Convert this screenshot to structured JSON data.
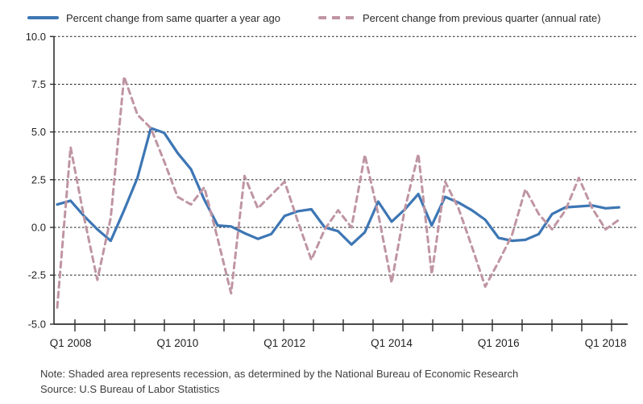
{
  "legend": {
    "yoy_label": "Percent change from same quarter a year ago",
    "qoq_label": "Percent change from previous quarter (annual rate)"
  },
  "notes": {
    "note": "Note: Shaded area represents recession, as determined by the National Bureau of Economic Research",
    "source": "Source: U.S Bureau of Labor Statistics"
  },
  "colors": {
    "yoy_line": "#3d76b4",
    "qoq_line": "#bf95a2",
    "gridline": "#1a1a1a",
    "axis": "#2e2e2e",
    "tick_text": "#222222"
  },
  "chart_data": {
    "type": "line",
    "title": "",
    "xlabel": "",
    "ylabel": "",
    "ylim": [
      -5.0,
      10.0
    ],
    "grid": "horizontal-dashed",
    "legend_position": "top",
    "y_ticks": [
      10.0,
      7.5,
      5.0,
      2.5,
      0.0,
      -2.5,
      -5.0
    ],
    "y_tick_labels": [
      "10.0",
      "7.5",
      "5.0",
      "2.5",
      "0.0",
      "-2.5",
      "-5.0"
    ],
    "x_tick_labels": [
      "Q1 2008",
      "Q1 2010",
      "Q1 2012",
      "Q1 2014",
      "Q1 2016",
      "Q1 2018"
    ],
    "x_tick_label_indices": [
      1,
      9,
      17,
      25,
      33,
      41
    ],
    "categories": [
      "Q4 2007",
      "Q1 2008",
      "Q2 2008",
      "Q3 2008",
      "Q4 2008",
      "Q1 2009",
      "Q2 2009",
      "Q3 2009",
      "Q4 2009",
      "Q1 2010",
      "Q2 2010",
      "Q3 2010",
      "Q4 2010",
      "Q1 2011",
      "Q2 2011",
      "Q3 2011",
      "Q4 2011",
      "Q1 2012",
      "Q2 2012",
      "Q3 2012",
      "Q4 2012",
      "Q1 2013",
      "Q2 2013",
      "Q3 2013",
      "Q4 2013",
      "Q1 2014",
      "Q2 2014",
      "Q3 2014",
      "Q4 2014",
      "Q1 2015",
      "Q2 2015",
      "Q3 2015",
      "Q4 2015",
      "Q1 2016",
      "Q2 2016",
      "Q3 2016",
      "Q4 2016",
      "Q1 2017",
      "Q2 2017",
      "Q3 2017",
      "Q4 2017",
      "Q1 2018",
      "Q2 2018"
    ],
    "series": [
      {
        "name": "Percent change from same quarter a year ago",
        "style": "solid",
        "color": "#3d76b4",
        "values": [
          1.2,
          1.4,
          0.6,
          -0.1,
          -0.7,
          0.9,
          2.6,
          5.2,
          4.95,
          3.9,
          3.05,
          1.45,
          0.1,
          0.05,
          -0.3,
          -0.6,
          -0.35,
          0.6,
          0.85,
          0.95,
          0.0,
          -0.2,
          -0.9,
          -0.25,
          1.35,
          0.3,
          0.95,
          1.75,
          0.1,
          1.6,
          1.3,
          0.9,
          0.4,
          -0.55,
          -0.7,
          -0.65,
          -0.35,
          0.7,
          1.05,
          1.1,
          1.15,
          1.0,
          1.05
        ]
      },
      {
        "name": "Percent change from previous quarter (annual rate)",
        "style": "dashed",
        "color": "#bf95a2",
        "values": [
          -4.2,
          4.2,
          0.55,
          -2.75,
          0.5,
          7.9,
          5.9,
          5.2,
          3.45,
          1.6,
          1.2,
          2.1,
          -0.6,
          -3.45,
          2.7,
          1.0,
          1.7,
          2.4,
          0.3,
          -1.7,
          -0.1,
          0.9,
          0.0,
          3.8,
          0.7,
          -2.9,
          1.0,
          3.85,
          -2.45,
          2.4,
          1.0,
          -1.0,
          -3.1,
          -1.8,
          -0.4,
          2.0,
          0.7,
          -0.1,
          0.9,
          2.6,
          1.0,
          -0.1,
          0.4
        ]
      }
    ]
  }
}
